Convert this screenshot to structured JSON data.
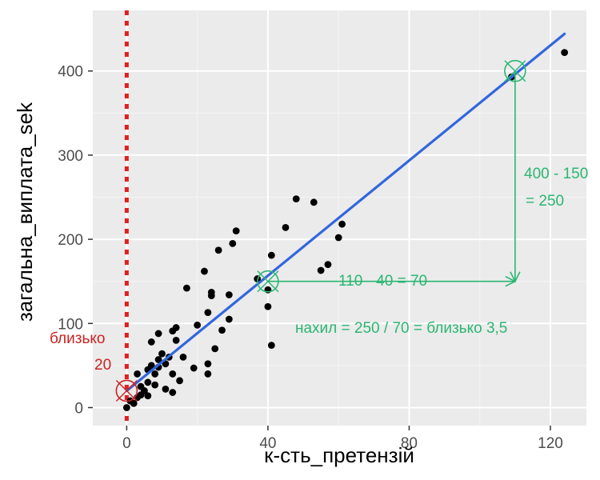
{
  "chart_data": {
    "type": "scatter",
    "title": "",
    "xlabel": "к-сть_претензій",
    "ylabel": "загальна_виплата_sek",
    "xlim": [
      -9.6,
      130.2
    ],
    "ylim": [
      -21.4,
      472.0
    ],
    "x_ticks": [
      0,
      40,
      80,
      120
    ],
    "y_ticks": [
      0,
      100,
      200,
      300,
      400
    ],
    "x_tick_labels": [
      "0",
      "40",
      "80",
      "120"
    ],
    "y_tick_labels": [
      "0",
      "100",
      "200",
      "300",
      "400"
    ],
    "grid": true,
    "background": "#ebebeb",
    "points": [
      [
        0,
        0
      ],
      [
        1,
        8
      ],
      [
        2,
        5
      ],
      [
        3,
        12
      ],
      [
        3,
        40
      ],
      [
        4,
        15
      ],
      [
        4,
        25
      ],
      [
        5,
        20
      ],
      [
        6,
        30
      ],
      [
        6,
        45
      ],
      [
        6,
        14
      ],
      [
        7,
        50
      ],
      [
        7,
        78
      ],
      [
        8,
        27
      ],
      [
        8,
        40
      ],
      [
        9,
        88
      ],
      [
        9,
        48
      ],
      [
        9,
        57
      ],
      [
        10,
        64
      ],
      [
        11,
        22
      ],
      [
        11,
        52
      ],
      [
        12,
        60
      ],
      [
        13,
        91
      ],
      [
        13,
        18
      ],
      [
        13,
        40
      ],
      [
        14,
        95
      ],
      [
        14,
        80
      ],
      [
        15,
        32
      ],
      [
        16,
        60
      ],
      [
        17,
        142
      ],
      [
        19,
        47
      ],
      [
        20,
        98
      ],
      [
        22,
        162
      ],
      [
        23,
        113
      ],
      [
        23,
        40
      ],
      [
        23,
        52
      ],
      [
        24,
        137
      ],
      [
        24,
        133
      ],
      [
        25,
        70
      ],
      [
        26,
        187
      ],
      [
        27,
        92
      ],
      [
        29,
        105
      ],
      [
        29,
        134
      ],
      [
        30,
        195
      ],
      [
        31,
        210
      ],
      [
        37,
        153
      ],
      [
        40,
        120
      ],
      [
        40,
        140
      ],
      [
        41,
        181
      ],
      [
        41,
        74
      ],
      [
        45,
        214
      ],
      [
        48,
        248
      ],
      [
        53,
        244
      ],
      [
        55,
        163
      ],
      [
        57,
        170
      ],
      [
        60,
        202
      ],
      [
        61,
        218
      ],
      [
        109,
        393
      ],
      [
        124,
        422
      ]
    ],
    "fit_line": {
      "slope": 3.42,
      "intercept": 19.99,
      "x_range": [
        0,
        124
      ]
    },
    "reference_line": {
      "x": 0,
      "style": "dotted"
    },
    "colors": {
      "points": "#000000",
      "fit": "#3366dd",
      "annotation_green": "#2bb673",
      "annotation_red": "#cc2222",
      "reference": "#e02020"
    },
    "annotations": {
      "intercept_label_1": "близько",
      "intercept_label_2": "20",
      "dx_label": "110 - 40 = 70",
      "dy_label_1": "400 - 150",
      "dy_label_2": "= 250",
      "slope_label": "нахил = 250 / 70 = близько 3,5"
    },
    "markers": [
      {
        "x": 0,
        "y": 20,
        "color": "red"
      },
      {
        "x": 40,
        "y": 150,
        "color": "green"
      },
      {
        "x": 110,
        "y": 400,
        "color": "green"
      }
    ]
  }
}
